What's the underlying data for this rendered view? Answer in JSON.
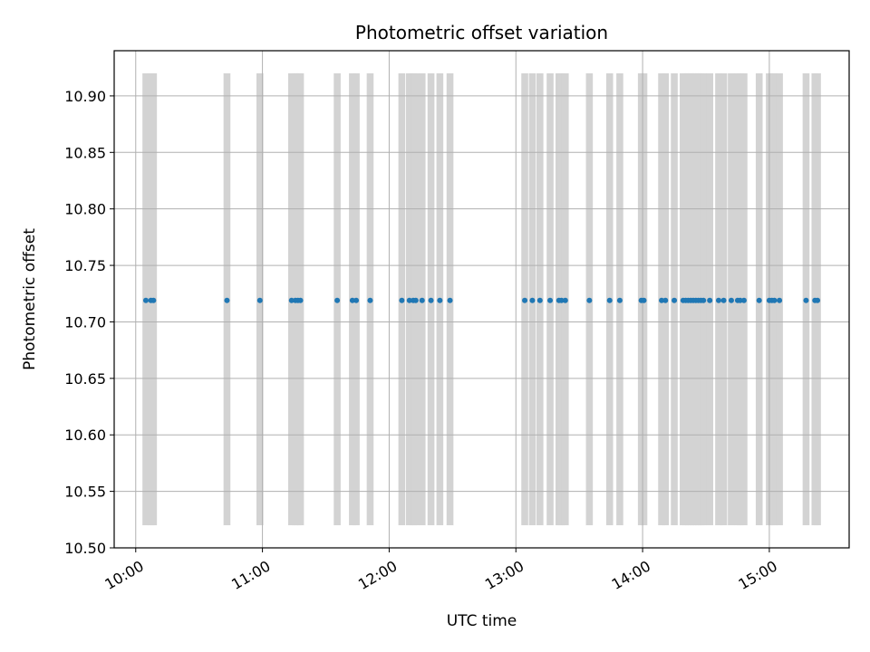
{
  "chart_data": {
    "type": "scatter",
    "title": "Photometric offset variation",
    "xlabel": "UTC time",
    "ylabel": "Photometric offset",
    "x_unit": "hours UTC",
    "xlim": [
      9.83,
      15.63
    ],
    "ylim": [
      10.5,
      10.94
    ],
    "x_ticks": [
      {
        "value": 10,
        "label": "10:00"
      },
      {
        "value": 11,
        "label": "11:00"
      },
      {
        "value": 12,
        "label": "12:00"
      },
      {
        "value": 13,
        "label": "13:00"
      },
      {
        "value": 14,
        "label": "14:00"
      },
      {
        "value": 15,
        "label": "15:00"
      }
    ],
    "y_ticks": [
      {
        "value": 10.5,
        "label": "10.50"
      },
      {
        "value": 10.55,
        "label": "10.55"
      },
      {
        "value": 10.6,
        "label": "10.60"
      },
      {
        "value": 10.65,
        "label": "10.65"
      },
      {
        "value": 10.7,
        "label": "10.70"
      },
      {
        "value": 10.75,
        "label": "10.75"
      },
      {
        "value": 10.8,
        "label": "10.80"
      },
      {
        "value": 10.85,
        "label": "10.85"
      },
      {
        "value": 10.9,
        "label": "10.90"
      }
    ],
    "grid": true,
    "band_color": "#d3d3d3",
    "point_color": "#1f77b4",
    "band_range": [
      10.52,
      10.92
    ],
    "y_value": 10.719,
    "x": [
      10.08,
      10.12,
      10.14,
      10.72,
      10.98,
      11.23,
      11.26,
      11.28,
      11.3,
      11.59,
      11.71,
      11.74,
      11.85,
      12.1,
      12.16,
      12.19,
      12.21,
      12.26,
      12.33,
      12.4,
      12.48,
      13.07,
      13.13,
      13.19,
      13.27,
      13.34,
      13.36,
      13.39,
      13.58,
      13.74,
      13.82,
      13.99,
      14.01,
      14.15,
      14.18,
      14.25,
      14.32,
      14.34,
      14.36,
      14.38,
      14.4,
      14.42,
      14.44,
      14.46,
      14.48,
      14.53,
      14.6,
      14.64,
      14.7,
      14.75,
      14.77,
      14.8,
      14.92,
      15.0,
      15.02,
      15.04,
      15.08,
      15.29,
      15.36,
      15.38
    ],
    "band_x": [
      10.08,
      10.12,
      10.14,
      10.72,
      10.98,
      11.23,
      11.26,
      11.28,
      11.3,
      11.59,
      11.71,
      11.74,
      11.85,
      12.1,
      12.16,
      12.19,
      12.21,
      12.26,
      12.33,
      12.4,
      12.48,
      13.07,
      13.13,
      13.19,
      13.27,
      13.34,
      13.36,
      13.39,
      13.58,
      13.74,
      13.82,
      13.99,
      14.01,
      14.15,
      14.18,
      14.25,
      14.32,
      14.34,
      14.36,
      14.38,
      14.4,
      14.42,
      14.44,
      14.46,
      14.48,
      14.53,
      14.6,
      14.64,
      14.7,
      14.75,
      14.77,
      14.8,
      14.92,
      15.0,
      15.02,
      15.04,
      15.08,
      15.29,
      15.36,
      15.38
    ]
  }
}
